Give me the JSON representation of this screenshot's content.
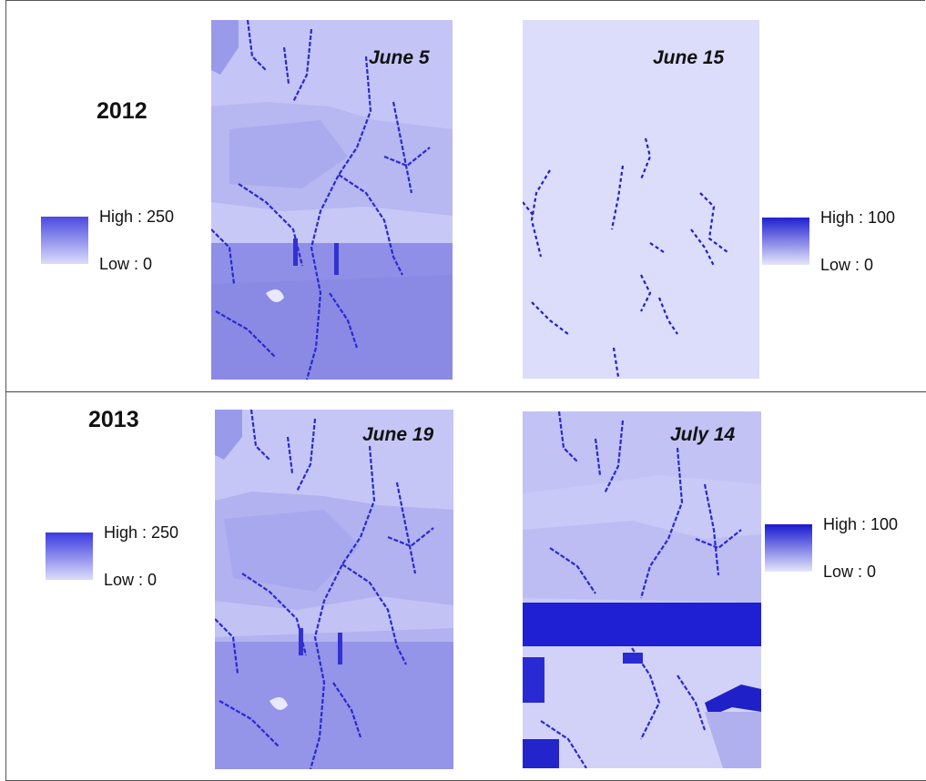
{
  "years": {
    "y2012": "2012",
    "y2013": "2013"
  },
  "colors": {
    "low": "#dcdcfb",
    "high": "#2323d6",
    "stream": "#2020c8"
  },
  "maps": [
    {
      "id": "june5",
      "date": "June 5",
      "year": "2012",
      "pattern": "northern-low-southern-high"
    },
    {
      "id": "june15",
      "date": "June 15",
      "year": "2012",
      "pattern": "uniform-low-streams-only"
    },
    {
      "id": "june19",
      "date": "June 19",
      "year": "2013",
      "pattern": "northern-low-southern-high"
    },
    {
      "id": "july14",
      "date": "July 14",
      "year": "2013",
      "pattern": "low-with-high-band"
    }
  ],
  "legends": [
    {
      "id": "legend-2012-left",
      "high": "High : 250",
      "low": "Low : 0"
    },
    {
      "id": "legend-2012-right",
      "high": "High : 100",
      "low": "Low : 0"
    },
    {
      "id": "legend-2013-left",
      "high": "High : 250",
      "low": "Low : 0"
    },
    {
      "id": "legend-2013-right",
      "high": "High : 100",
      "low": "Low : 0"
    }
  ]
}
